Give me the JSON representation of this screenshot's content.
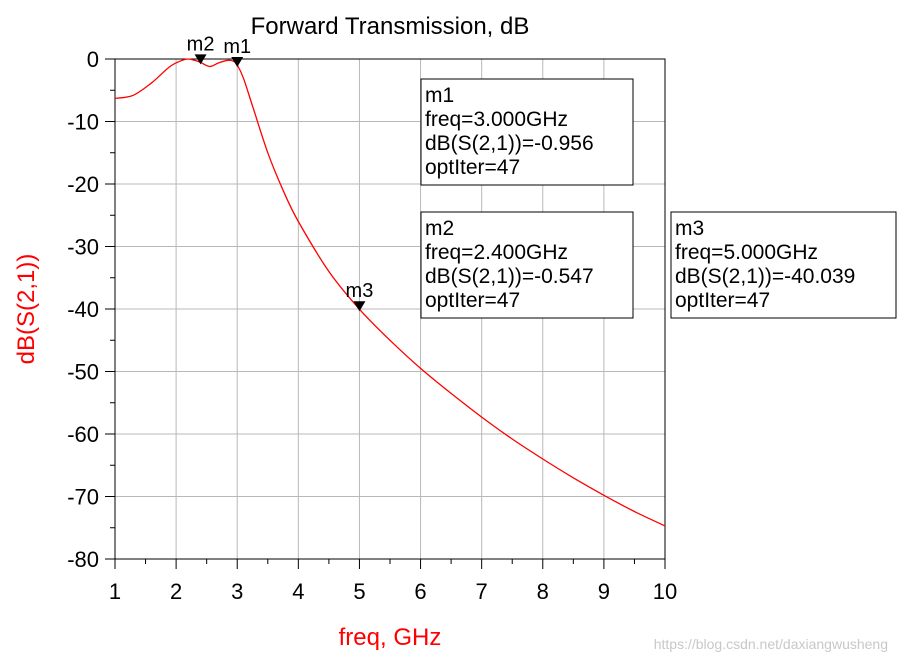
{
  "chart_data": {
    "type": "line",
    "title": "Forward Transmission, dB",
    "xlabel": "freq, GHz",
    "ylabel": "dB(S(2,1))",
    "xlim": [
      1,
      10
    ],
    "ylim": [
      -80,
      0
    ],
    "xticks": [
      1,
      2,
      3,
      4,
      5,
      6,
      7,
      8,
      9,
      10
    ],
    "yticks": [
      0,
      -10,
      -20,
      -30,
      -40,
      -50,
      -60,
      -70,
      -80
    ],
    "grid": true,
    "series": [
      {
        "name": "dB(S(2,1))",
        "color": "#ff0000",
        "x": [
          1.0,
          1.3,
          1.6,
          1.9,
          2.1,
          2.2,
          2.3,
          2.4,
          2.55,
          2.7,
          2.85,
          2.95,
          3.0,
          3.1,
          3.25,
          3.5,
          3.75,
          4.0,
          4.5,
          5.0,
          5.5,
          6.0,
          6.5,
          7.0,
          7.5,
          8.0,
          8.5,
          9.0,
          9.5,
          10.0
        ],
        "y": [
          -6.3,
          -5.8,
          -3.8,
          -1.2,
          -0.2,
          0.0,
          -0.2,
          -0.547,
          -1.2,
          -0.6,
          -0.2,
          -0.4,
          -0.956,
          -3.0,
          -7.5,
          -15.0,
          -21.0,
          -26.0,
          -34.0,
          -40.039,
          -45.0,
          -49.5,
          -53.5,
          -57.3,
          -60.8,
          -64.0,
          -67.0,
          -69.8,
          -72.4,
          -74.7
        ]
      }
    ],
    "markers": [
      {
        "name": "m1",
        "freq": 3.0,
        "value": -0.956,
        "lines": [
          "m1",
          "freq=3.000GHz",
          "dB(S(2,1))=-0.956",
          "optIter=47"
        ]
      },
      {
        "name": "m2",
        "freq": 2.4,
        "value": -0.547,
        "lines": [
          "m2",
          "freq=2.400GHz",
          "dB(S(2,1))=-0.547",
          "optIter=47"
        ]
      },
      {
        "name": "m3",
        "freq": 5.0,
        "value": -40.039,
        "lines": [
          "m3",
          "freq=5.000GHz",
          "dB(S(2,1))=-40.039",
          "optIter=47"
        ]
      }
    ]
  },
  "watermark": "https://blog.csdn.net/daxiangwusheng"
}
